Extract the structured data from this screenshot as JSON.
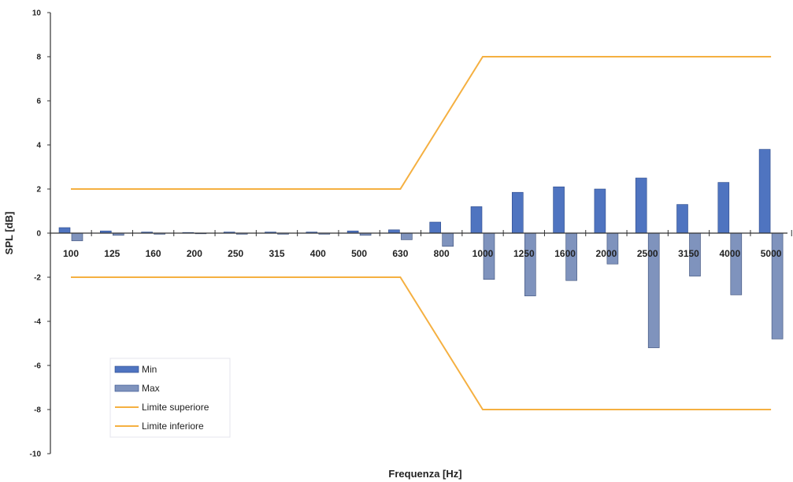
{
  "chart_data": {
    "type": "bar",
    "title": "",
    "xlabel": "Frequenza [Hz]",
    "ylabel": "SPL [dB]",
    "ylim": [
      -10,
      10
    ],
    "yticks": [
      -10,
      -8,
      -6,
      -4,
      -2,
      0,
      2,
      4,
      6,
      8,
      10
    ],
    "categories": [
      "100",
      "125",
      "160",
      "200",
      "250",
      "315",
      "400",
      "500",
      "630",
      "800",
      "1000",
      "1250",
      "1600",
      "2000",
      "2500",
      "3150",
      "4000",
      "5000"
    ],
    "series": [
      {
        "name": "Min",
        "kind": "bar",
        "color": "#4f74c0",
        "values": [
          0.25,
          0.1,
          0.05,
          0.03,
          0.05,
          0.05,
          0.05,
          0.1,
          0.15,
          0.5,
          1.2,
          1.85,
          2.1,
          2.0,
          2.5,
          1.3,
          2.3,
          3.8
        ]
      },
      {
        "name": "Max",
        "kind": "bar",
        "color": "#7f93bd",
        "values": [
          -0.35,
          -0.1,
          -0.05,
          -0.03,
          -0.05,
          -0.05,
          -0.05,
          -0.1,
          -0.3,
          -0.6,
          -2.1,
          -2.85,
          -2.15,
          -1.4,
          -5.2,
          -1.95,
          -2.8,
          -4.8
        ]
      },
      {
        "name": "Limite superiore",
        "kind": "line",
        "color": "#f5b041",
        "values": [
          2,
          2,
          2,
          2,
          2,
          2,
          2,
          2,
          2,
          5,
          8,
          8,
          8,
          8,
          8,
          8,
          8,
          8
        ]
      },
      {
        "name": "Limite inferiore",
        "kind": "line",
        "color": "#f5b041",
        "values": [
          -2,
          -2,
          -2,
          -2,
          -2,
          -2,
          -2,
          -2,
          -2,
          -5,
          -8,
          -8,
          -8,
          -8,
          -8,
          -8,
          -8,
          -8
        ]
      }
    ],
    "grid": false,
    "legend_position": "bottom-left"
  }
}
